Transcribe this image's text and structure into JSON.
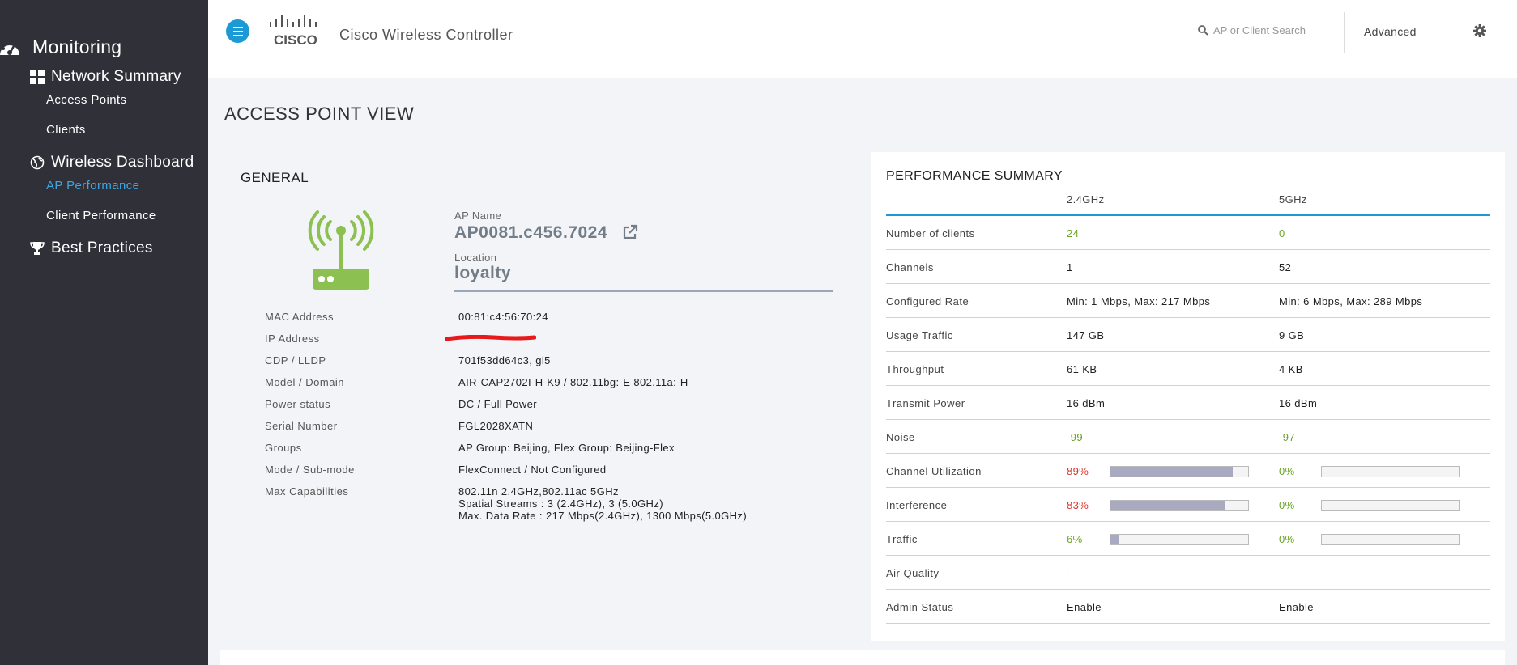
{
  "sidebar": {
    "monitoring": "Monitoring",
    "network_summary": "Network Summary",
    "access_points": "Access Points",
    "clients": "Clients",
    "wireless_dashboard": "Wireless Dashboard",
    "ap_performance": "AP Performance",
    "client_performance": "Client Performance",
    "best_practices": "Best Practices"
  },
  "header": {
    "logo_text": "CISCO",
    "app_title": "Cisco Wireless Controller",
    "search_placeholder": "AP or Client Search",
    "advanced_label": "Advanced"
  },
  "page_title": "ACCESS POINT VIEW",
  "general": {
    "title": "GENERAL",
    "ap_name_label": "AP Name",
    "ap_name": "AP0081.c456.7024",
    "location_label": "Location",
    "location": "loyalty",
    "fields": [
      {
        "label": "MAC Address",
        "value": "00:81:c4:56:70:24"
      },
      {
        "label": "IP Address",
        "value": ""
      },
      {
        "label": "CDP / LLDP",
        "value": "701f53dd64c3, gi5"
      },
      {
        "label": "Model / Domain",
        "value": "AIR-CAP2702I-H-K9 / 802.11bg:-E 802.11a:-H"
      },
      {
        "label": "Power status",
        "value": "DC / Full Power"
      },
      {
        "label": "Serial Number",
        "value": "FGL2028XATN"
      },
      {
        "label": "Groups",
        "value": "AP Group: Beijing, Flex Group: Beijing-Flex"
      },
      {
        "label": "Mode / Sub-mode",
        "value": "FlexConnect / Not Configured"
      },
      {
        "label": "Max Capabilities",
        "value": "802.11n 2.4GHz,802.11ac 5GHz"
      }
    ],
    "max_cap_line2": "Spatial Streams : 3 (2.4GHz), 3 (5.0GHz)",
    "max_cap_line3": "Max. Data Rate : 217 Mbps(2.4GHz), 1300 Mbps(5.0GHz)"
  },
  "performance": {
    "title": "PERFORMANCE SUMMARY",
    "col1": "2.4GHz",
    "col2": "5GHz",
    "rows": [
      {
        "label": "Number of clients",
        "v1": "24",
        "v2": "0"
      },
      {
        "label": "Channels",
        "v1": "1",
        "v2": "52"
      },
      {
        "label": "Configured Rate",
        "v1": "Min: 1 Mbps, Max: 217 Mbps",
        "v2": "Min: 6 Mbps, Max: 289 Mbps"
      },
      {
        "label": "Usage Traffic",
        "v1": "147 GB",
        "v2": "9 GB"
      },
      {
        "label": "Throughput",
        "v1": "61 KB",
        "v2": "4 KB"
      },
      {
        "label": "Transmit Power",
        "v1": "16 dBm",
        "v2": "16 dBm"
      },
      {
        "label": "Noise",
        "v1": "-99",
        "v2": "-97"
      },
      {
        "label": "Channel Utilization",
        "v1": "89%",
        "v2": "0%",
        "p1": 89,
        "p2": 0
      },
      {
        "label": "Interference",
        "v1": "83%",
        "v2": "0%",
        "p1": 83,
        "p2": 0
      },
      {
        "label": "Traffic",
        "v1": "6%",
        "v2": "0%",
        "p1": 6,
        "p2": 0
      },
      {
        "label": "Air Quality",
        "v1": "-",
        "v2": "-"
      },
      {
        "label": "Admin Status",
        "v1": "Enable",
        "v2": "Enable"
      }
    ]
  },
  "colors": {
    "sidebar_bg": "#2f3038",
    "accent_blue": "#1b9ad6",
    "good_green": "#6aa424",
    "bad_red": "#e0332d",
    "ap_icon_green": "#8cc152"
  }
}
